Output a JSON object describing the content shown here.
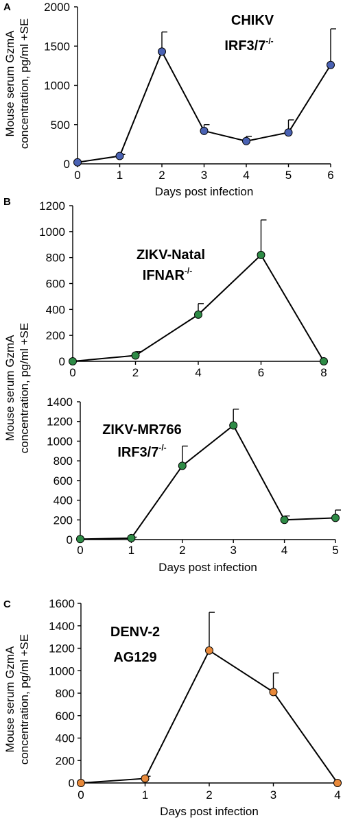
{
  "y_axis_label": {
    "line1": "Mouse serum GzmA",
    "line2": "concentration, pg/ml +SE"
  },
  "panel_labels": {
    "a": "A",
    "b": "B",
    "c": "C"
  },
  "chart_data": [
    {
      "type": "line",
      "panel": "A",
      "annotation_line1": "CHIKV",
      "annotation_line2": "IRF3/7",
      "annotation_sup": "-/-",
      "xlabel": "Days post infection",
      "x": [
        0,
        1,
        2,
        3,
        4,
        5,
        6
      ],
      "y": [
        20,
        100,
        1430,
        420,
        290,
        400,
        1260
      ],
      "err": [
        0,
        20,
        250,
        80,
        60,
        160,
        460
      ],
      "xlim": [
        0,
        6
      ],
      "ylim": [
        0,
        2000
      ],
      "xticks": [
        0,
        1,
        2,
        3,
        4,
        5,
        6
      ],
      "yticks": [
        0,
        500,
        1000,
        1500,
        2000
      ],
      "color": "#4a62b3"
    },
    {
      "type": "line",
      "panel": "B",
      "annotation_line1": "ZIKV-Natal",
      "annotation_line2": "IFNAR",
      "annotation_sup": "-/-",
      "xlabel": "",
      "x": [
        0,
        2,
        4,
        6,
        8
      ],
      "y": [
        0,
        45,
        360,
        820,
        0
      ],
      "err": [
        0,
        30,
        85,
        270,
        0
      ],
      "xlim": [
        0,
        8
      ],
      "ylim": [
        0,
        1200
      ],
      "xticks": [
        0,
        2,
        4,
        6,
        8
      ],
      "yticks": [
        0,
        200,
        400,
        600,
        800,
        1000,
        1200
      ],
      "color": "#2e8b46"
    },
    {
      "type": "line",
      "panel": "",
      "annotation_line1": "ZIKV-MR766",
      "annotation_line2": "IRF3/7",
      "annotation_sup": "-/-",
      "xlabel": "Days post infection",
      "x": [
        0,
        1,
        2,
        3,
        4,
        5
      ],
      "y": [
        5,
        15,
        750,
        1160,
        200,
        220
      ],
      "err": [
        0,
        10,
        200,
        165,
        40,
        80
      ],
      "xlim": [
        0,
        5
      ],
      "ylim": [
        0,
        1400
      ],
      "xticks": [
        0,
        1,
        2,
        3,
        4,
        5
      ],
      "yticks": [
        0,
        200,
        400,
        600,
        800,
        1000,
        1200,
        1400
      ],
      "color": "#2e8b46"
    },
    {
      "type": "line",
      "panel": "C",
      "annotation_line1": "DENV-2",
      "annotation_line2": "AG129",
      "annotation_sup": "",
      "xlabel": "Days post infection",
      "x": [
        0,
        1,
        2,
        3,
        4
      ],
      "y": [
        0,
        40,
        1180,
        810,
        0
      ],
      "err": [
        0,
        20,
        340,
        170,
        0
      ],
      "xlim": [
        0,
        4
      ],
      "ylim": [
        0,
        1600
      ],
      "xticks": [
        0,
        1,
        2,
        3,
        4
      ],
      "yticks": [
        0,
        200,
        400,
        600,
        800,
        1000,
        1200,
        1400,
        1600
      ],
      "color": "#e8893a"
    }
  ]
}
